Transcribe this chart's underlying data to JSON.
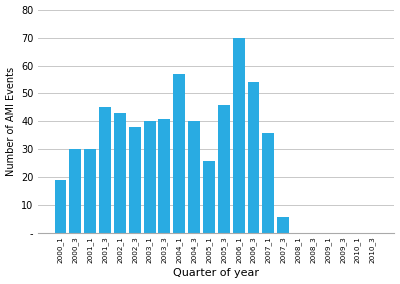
{
  "categories": [
    "2000_1",
    "2000_3",
    "2001_1",
    "2001_3",
    "2002_1",
    "2002_3",
    "2003_1",
    "2003_3",
    "2004_1",
    "2004_3",
    "2005_1",
    "2005_3",
    "2006_1",
    "2006_3",
    "2007_1",
    "2007_3",
    "2008_1",
    "2008_3",
    "2009_1",
    "2009_3",
    "2010_1",
    "2010_3"
  ],
  "values": [
    19,
    30,
    30,
    45,
    43,
    38,
    40,
    41,
    57,
    40,
    26,
    46,
    70,
    54,
    36,
    6,
    0,
    0,
    0,
    0,
    0,
    0
  ],
  "bar_color": "#29ABE2",
  "xlabel": "Quarter of year",
  "ylabel": "Number of AMI Events",
  "ylim": [
    0,
    80
  ],
  "yticks": [
    0,
    10,
    20,
    30,
    40,
    50,
    60,
    70,
    80
  ],
  "background_color": "#ffffff",
  "grid_color": "#c8c8c8"
}
